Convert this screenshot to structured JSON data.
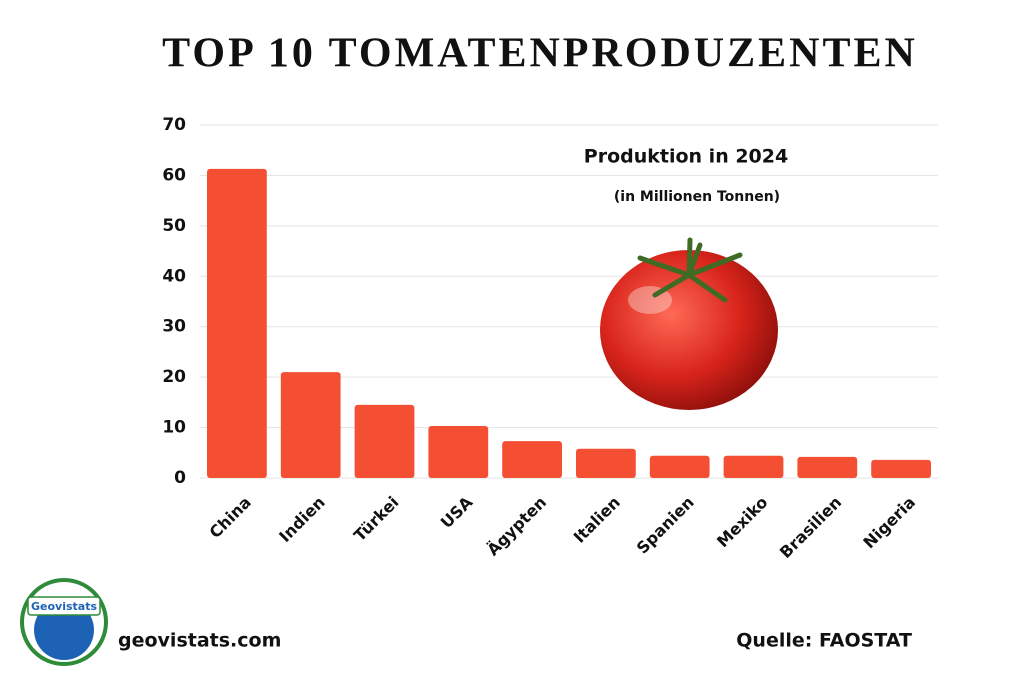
{
  "chart_data": {
    "type": "bar",
    "title": "TOP 10 TOMATENPRODUZENTEN",
    "subtitle": "Produktion in 2024",
    "unit_note": "(in Millionen Tonnen)",
    "categories": [
      "China",
      "Indien",
      "Türkei",
      "USA",
      "Ägypten",
      "Italien",
      "Spanien",
      "Mexiko",
      "Brasilien",
      "Nigeria"
    ],
    "values": [
      61.3,
      21.0,
      14.5,
      10.3,
      7.3,
      5.8,
      4.4,
      4.4,
      4.2,
      3.6
    ],
    "color": "#f44f33",
    "ylim": [
      0,
      70
    ],
    "yticks": [
      0,
      10,
      20,
      30,
      40,
      50,
      60,
      70
    ],
    "grid": true,
    "website": "geovistats.com",
    "source": "Quelle: FAOSTAT",
    "logo_text": "Geovistats"
  }
}
